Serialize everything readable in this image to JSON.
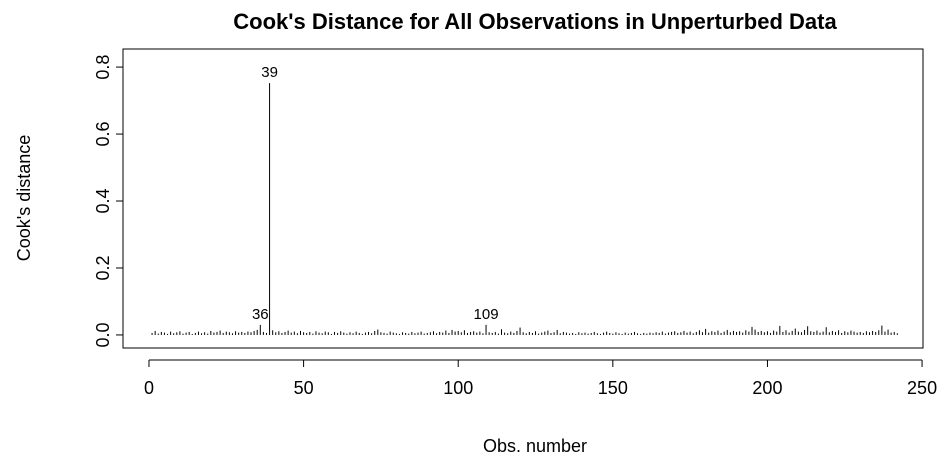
{
  "chart_data": {
    "type": "bar",
    "title": "Cook's Distance for All Observations in Unperturbed Data",
    "xlabel": "Obs. number",
    "ylabel": "Cook's distance",
    "color": "#000000",
    "x": [
      1,
      2,
      3,
      4,
      5,
      6,
      7,
      8,
      9,
      10,
      11,
      12,
      13,
      14,
      15,
      16,
      17,
      18,
      19,
      20,
      21,
      22,
      23,
      24,
      25,
      26,
      27,
      28,
      29,
      30,
      31,
      32,
      33,
      34,
      35,
      36,
      37,
      38,
      39,
      40,
      41,
      42,
      43,
      44,
      45,
      46,
      47,
      48,
      49,
      50,
      51,
      52,
      53,
      54,
      55,
      56,
      57,
      58,
      59,
      60,
      61,
      62,
      63,
      64,
      65,
      66,
      67,
      68,
      69,
      70,
      71,
      72,
      73,
      74,
      75,
      76,
      77,
      78,
      79,
      80,
      81,
      82,
      83,
      84,
      85,
      86,
      87,
      88,
      89,
      90,
      91,
      92,
      93,
      94,
      95,
      96,
      97,
      98,
      99,
      100,
      101,
      102,
      103,
      104,
      105,
      106,
      107,
      108,
      109,
      110,
      111,
      112,
      113,
      114,
      115,
      116,
      117,
      118,
      119,
      120,
      121,
      122,
      123,
      124,
      125,
      126,
      127,
      128,
      129,
      130,
      131,
      132,
      133,
      134,
      135,
      136,
      137,
      138,
      139,
      140,
      141,
      142,
      143,
      144,
      145,
      146,
      147,
      148,
      149,
      150,
      151,
      152,
      153,
      154,
      155,
      156,
      157,
      158,
      159,
      160,
      161,
      162,
      163,
      164,
      165,
      166,
      167,
      168,
      169,
      170,
      171,
      172,
      173,
      174,
      175,
      176,
      177,
      178,
      179,
      180,
      181,
      182,
      183,
      184,
      185,
      186,
      187,
      188,
      189,
      190,
      191,
      192,
      193,
      194,
      195,
      196,
      197,
      198,
      199,
      200,
      201,
      202,
      203,
      204,
      205,
      206,
      207,
      208,
      209,
      210,
      211,
      212,
      213,
      214,
      215,
      216,
      217,
      218,
      219,
      220,
      221,
      222,
      223,
      224,
      225,
      226,
      227,
      228,
      229,
      230,
      231,
      232,
      233,
      234,
      235,
      236,
      237,
      238,
      239,
      240,
      241,
      242
    ],
    "values": [
      0.006,
      0.012,
      0.004,
      0.009,
      0.007,
      0.003,
      0.01,
      0.005,
      0.008,
      0.011,
      0.004,
      0.007,
      0.009,
      0.003,
      0.006,
      0.01,
      0.005,
      0.008,
      0.004,
      0.012,
      0.007,
      0.009,
      0.013,
      0.006,
      0.01,
      0.008,
      0.005,
      0.011,
      0.007,
      0.009,
      0.006,
      0.01,
      0.008,
      0.012,
      0.015,
      0.03,
      0.009,
      0.006,
      0.752,
      0.014,
      0.008,
      0.011,
      0.006,
      0.009,
      0.013,
      0.007,
      0.01,
      0.005,
      0.012,
      0.008,
      0.006,
      0.009,
      0.004,
      0.011,
      0.007,
      0.005,
      0.01,
      0.008,
      0.003,
      0.009,
      0.006,
      0.011,
      0.007,
      0.004,
      0.008,
      0.005,
      0.01,
      0.006,
      0.003,
      0.007,
      0.009,
      0.005,
      0.012,
      0.016,
      0.008,
      0.006,
      0.004,
      0.01,
      0.007,
      0.005,
      0.003,
      0.008,
      0.006,
      0.004,
      0.009,
      0.005,
      0.007,
      0.01,
      0.004,
      0.006,
      0.008,
      0.011,
      0.005,
      0.009,
      0.007,
      0.013,
      0.006,
      0.015,
      0.01,
      0.012,
      0.008,
      0.014,
      0.006,
      0.009,
      0.011,
      0.007,
      0.01,
      0.005,
      0.03,
      0.008,
      0.006,
      0.009,
      0.004,
      0.017,
      0.007,
      0.005,
      0.01,
      0.006,
      0.012,
      0.022,
      0.008,
      0.005,
      0.009,
      0.006,
      0.011,
      0.004,
      0.007,
      0.01,
      0.013,
      0.006,
      0.008,
      0.015,
      0.005,
      0.009,
      0.007,
      0.004,
      0.006,
      0.003,
      0.008,
      0.005,
      0.007,
      0.004,
      0.006,
      0.009,
      0.005,
      0.003,
      0.007,
      0.01,
      0.006,
      0.004,
      0.008,
      0.005,
      0.003,
      0.007,
      0.004,
      0.006,
      0.009,
      0.005,
      0.003,
      0.006,
      0.004,
      0.007,
      0.005,
      0.008,
      0.006,
      0.01,
      0.004,
      0.007,
      0.009,
      0.011,
      0.006,
      0.008,
      0.012,
      0.007,
      0.01,
      0.005,
      0.009,
      0.014,
      0.008,
      0.018,
      0.007,
      0.011,
      0.009,
      0.013,
      0.006,
      0.01,
      0.015,
      0.008,
      0.012,
      0.009,
      0.011,
      0.007,
      0.014,
      0.01,
      0.024,
      0.016,
      0.009,
      0.012,
      0.008,
      0.011,
      0.006,
      0.013,
      0.01,
      0.027,
      0.009,
      0.014,
      0.007,
      0.012,
      0.019,
      0.01,
      0.008,
      0.015,
      0.026,
      0.011,
      0.009,
      0.013,
      0.007,
      0.01,
      0.023,
      0.008,
      0.012,
      0.009,
      0.014,
      0.006,
      0.011,
      0.008,
      0.013,
      0.01,
      0.007,
      0.009,
      0.006,
      0.011,
      0.008,
      0.012,
      0.009,
      0.014,
      0.028,
      0.01,
      0.016,
      0.007,
      0.009,
      0.005
    ],
    "annotations": [
      {
        "text": "39",
        "x": 39
      },
      {
        "text": "36",
        "x": 36
      },
      {
        "text": "109",
        "x": 109
      }
    ],
    "xlim": [
      -8.4,
      250.3
    ],
    "xticks": [
      0,
      50,
      100,
      150,
      200,
      250
    ],
    "ylim": [
      -0.039,
      0.854
    ],
    "yticks": [
      {
        "value": 0,
        "label": "0.0"
      },
      0.2,
      0.4,
      0.6,
      0.8
    ]
  }
}
